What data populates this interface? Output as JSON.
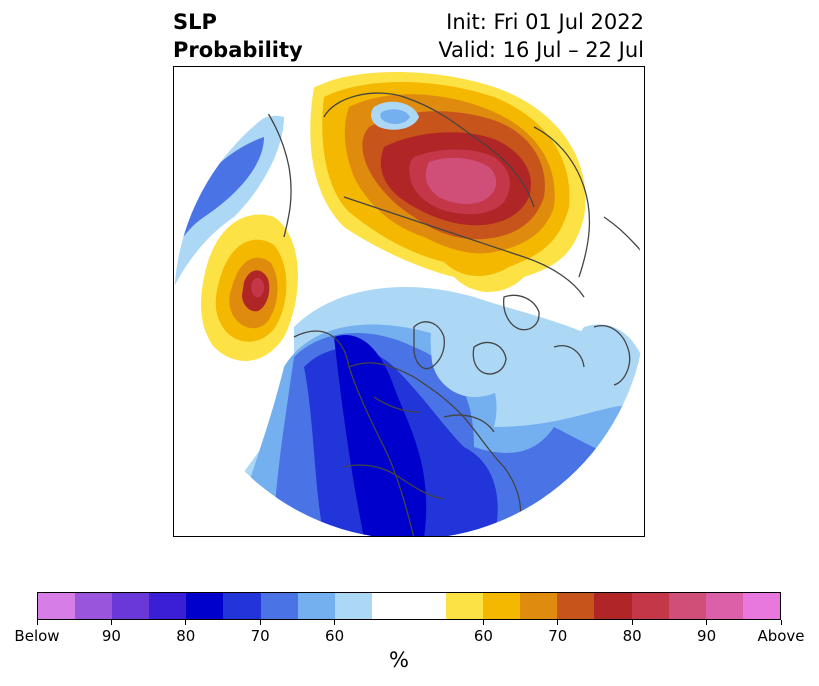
{
  "title": {
    "left_line1": "SLP",
    "left_line2": "Probability",
    "right_line1": "Init: Fri 01 Jul 2022",
    "right_line2": "Valid: 16 Jul – 22 Jul"
  },
  "colorbar": {
    "unit": "%",
    "colors": [
      "#d67ee6",
      "#9a55dd",
      "#6a37d9",
      "#3a1fd6",
      "#0000cc",
      "#2235d8",
      "#4a74e5",
      "#74afef",
      "#acd8f6",
      "#ffffff",
      "#ffffff",
      "#fde246",
      "#f4b800",
      "#df8b0e",
      "#c7541a",
      "#b02525",
      "#c33748",
      "#cf4f79",
      "#dc60a8",
      "#e878de"
    ],
    "tick_labels": [
      "Below",
      "90",
      "80",
      "70",
      "60",
      "60",
      "70",
      "80",
      "90",
      "Above"
    ],
    "tick_segments": [
      0,
      2,
      4,
      6,
      8,
      12,
      14,
      16,
      18,
      20
    ]
  },
  "map": {
    "projection": "north-polar-stereographic",
    "palette": {
      "below_60": "#acd8f6",
      "below_70": "#74afef",
      "below_75": "#4a74e5",
      "below_80": "#2235d8",
      "below_85": "#0000cc",
      "above_60": "#fde246",
      "above_65": "#f4b800",
      "above_70": "#df8b0e",
      "above_75": "#c7541a",
      "above_80": "#b02525",
      "above_85": "#c33748",
      "above_90": "#cf4f79",
      "coast": "#444444"
    }
  }
}
